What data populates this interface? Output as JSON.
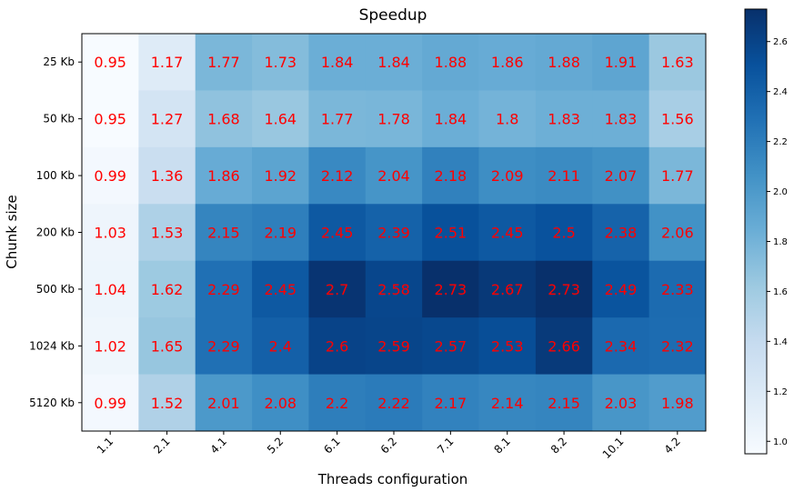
{
  "chart_data": {
    "type": "heatmap",
    "title": "Speedup",
    "xlabel": "Threads configuration",
    "ylabel": "Chunk size",
    "x_categories": [
      "1.1",
      "2.1",
      "4.1",
      "5.2",
      "6.1",
      "6.2",
      "7.1",
      "8.1",
      "8.2",
      "10.1",
      "4.2"
    ],
    "y_categories": [
      "25 Kb",
      "50 Kb",
      "100 Kb",
      "200 Kb",
      "500 Kb",
      "1024 Kb",
      "5120 Kb"
    ],
    "values": [
      [
        0.95,
        1.17,
        1.77,
        1.73,
        1.84,
        1.84,
        1.88,
        1.86,
        1.88,
        1.91,
        1.63
      ],
      [
        0.95,
        1.27,
        1.68,
        1.64,
        1.77,
        1.78,
        1.84,
        1.8,
        1.83,
        1.83,
        1.56
      ],
      [
        0.99,
        1.36,
        1.86,
        1.92,
        2.12,
        2.04,
        2.18,
        2.09,
        2.11,
        2.07,
        1.77
      ],
      [
        1.03,
        1.53,
        2.15,
        2.19,
        2.45,
        2.39,
        2.51,
        2.45,
        2.5,
        2.38,
        2.06
      ],
      [
        1.04,
        1.62,
        2.29,
        2.45,
        2.7,
        2.58,
        2.73,
        2.67,
        2.73,
        2.49,
        2.33
      ],
      [
        1.02,
        1.65,
        2.29,
        2.4,
        2.6,
        2.59,
        2.57,
        2.53,
        2.66,
        2.34,
        2.32
      ],
      [
        0.99,
        1.52,
        2.01,
        2.08,
        2.2,
        2.22,
        2.17,
        2.14,
        2.15,
        2.03,
        1.98
      ]
    ],
    "colormap": "Blues",
    "color_range": [
      0.95,
      2.73
    ],
    "colorbar_ticks": [
      1.0,
      1.2,
      1.4,
      1.6,
      1.8,
      2.0,
      2.2,
      2.4,
      2.6
    ],
    "annotation_color": "#ff0000",
    "grid": false,
    "legend": "colorbar-right"
  }
}
